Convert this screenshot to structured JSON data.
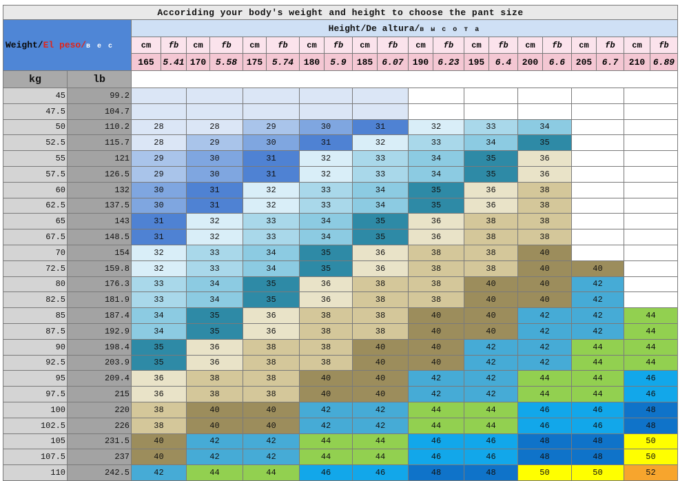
{
  "title": "Accoriding your body's weight and height to choose the pant size",
  "weight_header": {
    "part1": "Weight/",
    "part2": "El peso",
    "part3": "/",
    "part4": "в е с"
  },
  "height_header": {
    "part1": "Height/De altura/",
    "part2": "в ы с о т а"
  },
  "unit_labels": {
    "cm": "cm",
    "fb": "fb",
    "kg": "kg",
    "lb": "lb"
  },
  "heights": [
    {
      "cm": "165",
      "ft": "5.41"
    },
    {
      "cm": "170",
      "ft": "5.58"
    },
    {
      "cm": "175",
      "ft": "5.74"
    },
    {
      "cm": "180",
      "ft": "5.9"
    },
    {
      "cm": "185",
      "ft": "6.07"
    },
    {
      "cm": "190",
      "ft": "6.23"
    },
    {
      "cm": "195",
      "ft": "6.4"
    },
    {
      "cm": "200",
      "ft": "6.6"
    },
    {
      "cm": "205",
      "ft": "6.7"
    },
    {
      "cm": "210",
      "ft": "6.89"
    }
  ],
  "rows": [
    {
      "kg": "45",
      "lb": "99.2",
      "sizes": [
        "",
        "",
        "",
        "",
        "",
        "",
        "",
        "",
        "",
        ""
      ]
    },
    {
      "kg": "47.5",
      "lb": "104.7",
      "sizes": [
        "",
        "",
        "",
        "",
        "",
        "",
        "",
        "",
        "",
        ""
      ]
    },
    {
      "kg": "50",
      "lb": "110.2",
      "sizes": [
        "28",
        "28",
        "29",
        "30",
        "31",
        "32",
        "33",
        "34",
        "",
        ""
      ]
    },
    {
      "kg": "52.5",
      "lb": "115.7",
      "sizes": [
        "28",
        "29",
        "30",
        "31",
        "32",
        "33",
        "34",
        "35",
        "",
        ""
      ]
    },
    {
      "kg": "55",
      "lb": "121",
      "sizes": [
        "29",
        "30",
        "31",
        "32",
        "33",
        "34",
        "35",
        "36",
        "",
        ""
      ]
    },
    {
      "kg": "57.5",
      "lb": "126.5",
      "sizes": [
        "29",
        "30",
        "31",
        "32",
        "33",
        "34",
        "35",
        "36",
        "",
        ""
      ]
    },
    {
      "kg": "60",
      "lb": "132",
      "sizes": [
        "30",
        "31",
        "32",
        "33",
        "34",
        "35",
        "36",
        "38",
        "",
        ""
      ]
    },
    {
      "kg": "62.5",
      "lb": "137.5",
      "sizes": [
        "30",
        "31",
        "32",
        "33",
        "34",
        "35",
        "36",
        "38",
        "",
        ""
      ]
    },
    {
      "kg": "65",
      "lb": "143",
      "sizes": [
        "31",
        "32",
        "33",
        "34",
        "35",
        "36",
        "38",
        "38",
        "",
        ""
      ]
    },
    {
      "kg": "67.5",
      "lb": "148.5",
      "sizes": [
        "31",
        "32",
        "33",
        "34",
        "35",
        "36",
        "38",
        "38",
        "",
        ""
      ]
    },
    {
      "kg": "70",
      "lb": "154",
      "sizes": [
        "32",
        "33",
        "34",
        "35",
        "36",
        "38",
        "38",
        "40",
        "",
        ""
      ]
    },
    {
      "kg": "72.5",
      "lb": "159.8",
      "sizes": [
        "32",
        "33",
        "34",
        "35",
        "36",
        "38",
        "38",
        "40",
        "40",
        ""
      ]
    },
    {
      "kg": "80",
      "lb": "176.3",
      "sizes": [
        "33",
        "34",
        "35",
        "36",
        "38",
        "38",
        "40",
        "40",
        "42",
        ""
      ]
    },
    {
      "kg": "82.5",
      "lb": "181.9",
      "sizes": [
        "33",
        "34",
        "35",
        "36",
        "38",
        "38",
        "40",
        "40",
        "42",
        ""
      ]
    },
    {
      "kg": "85",
      "lb": "187.4",
      "sizes": [
        "34",
        "35",
        "36",
        "38",
        "38",
        "40",
        "40",
        "42",
        "42",
        "44"
      ]
    },
    {
      "kg": "87.5",
      "lb": "192.9",
      "sizes": [
        "34",
        "35",
        "36",
        "38",
        "38",
        "40",
        "40",
        "42",
        "42",
        "44"
      ]
    },
    {
      "kg": "90",
      "lb": "198.4",
      "sizes": [
        "35",
        "36",
        "38",
        "38",
        "40",
        "40",
        "42",
        "42",
        "44",
        "44"
      ]
    },
    {
      "kg": "92.5",
      "lb": "203.9",
      "sizes": [
        "35",
        "36",
        "38",
        "38",
        "40",
        "40",
        "42",
        "42",
        "44",
        "44"
      ]
    },
    {
      "kg": "95",
      "lb": "209.4",
      "sizes": [
        "36",
        "38",
        "38",
        "40",
        "40",
        "42",
        "42",
        "44",
        "44",
        "46"
      ]
    },
    {
      "kg": "97.5",
      "lb": "215",
      "sizes": [
        "36",
        "38",
        "38",
        "40",
        "40",
        "42",
        "42",
        "44",
        "44",
        "46"
      ]
    },
    {
      "kg": "100",
      "lb": "220",
      "sizes": [
        "38",
        "40",
        "40",
        "42",
        "42",
        "44",
        "44",
        "46",
        "46",
        "48"
      ]
    },
    {
      "kg": "102.5",
      "lb": "226",
      "sizes": [
        "38",
        "40",
        "40",
        "42",
        "42",
        "44",
        "44",
        "46",
        "46",
        "48"
      ]
    },
    {
      "kg": "105",
      "lb": "231.5",
      "sizes": [
        "40",
        "42",
        "42",
        "44",
        "44",
        "46",
        "46",
        "48",
        "48",
        "50"
      ]
    },
    {
      "kg": "107.5",
      "lb": "237",
      "sizes": [
        "40",
        "42",
        "42",
        "44",
        "44",
        "46",
        "46",
        "48",
        "48",
        "50"
      ]
    },
    {
      "kg": "110",
      "lb": "242.5",
      "sizes": [
        "42",
        "44",
        "44",
        "46",
        "46",
        "48",
        "48",
        "50",
        "50",
        "52"
      ]
    }
  ],
  "size_colors": {
    "28": "#dbe6f6",
    "29": "#a9c4ea",
    "30": "#7fa6e0",
    "31": "#4f82d3",
    "32": "#d9eef8",
    "33": "#a9d8ea",
    "34": "#8ccbe2",
    "35": "#2e8aa6",
    "36": "#e9e3c8",
    "38": "#d4c79a",
    "40": "#9c8d5c",
    "42": "#46abd6",
    "44": "#92d050",
    "46": "#12a7ea",
    "48": "#0f73c9",
    "50": "#ffff00",
    "52": "#f7a52d"
  },
  "empty_colors": {
    "shaded": "#dbe6f6",
    "blank": "#ffffff"
  }
}
